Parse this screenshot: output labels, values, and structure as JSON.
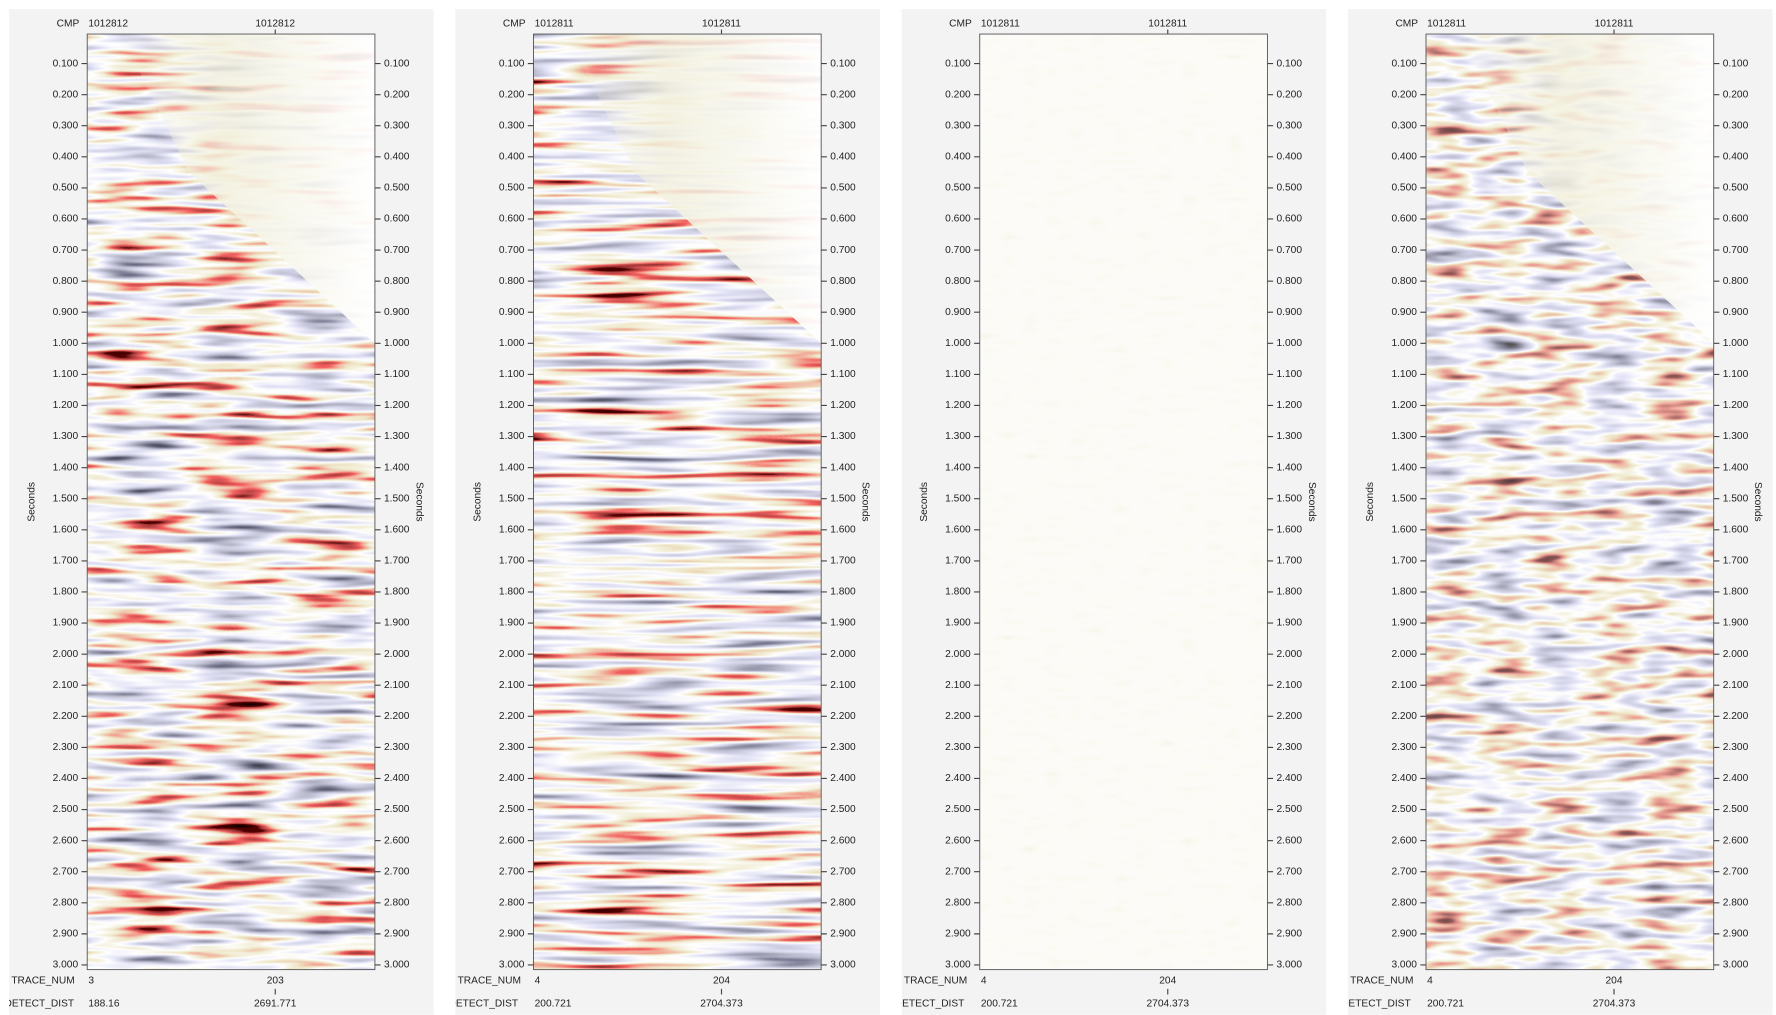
{
  "time_axis": {
    "label": "Seconds",
    "ylim": [
      0.005,
      3.015
    ],
    "yticks": [
      {
        "value": 0.1,
        "label": "0.100"
      },
      {
        "value": 0.2,
        "label": "0.200"
      },
      {
        "value": 0.3,
        "label": "0.300"
      },
      {
        "value": 0.4,
        "label": "0.400"
      },
      {
        "value": 0.5,
        "label": "0.500"
      },
      {
        "value": 0.6,
        "label": "0.600"
      },
      {
        "value": 0.7,
        "label": "0.700"
      },
      {
        "value": 0.8,
        "label": "0.800"
      },
      {
        "value": 0.9,
        "label": "0.900"
      },
      {
        "value": 1.0,
        "label": "1.000"
      },
      {
        "value": 1.1,
        "label": "1.100"
      },
      {
        "value": 1.2,
        "label": "1.200"
      },
      {
        "value": 1.3,
        "label": "1.300"
      },
      {
        "value": 1.4,
        "label": "1.400"
      },
      {
        "value": 1.5,
        "label": "1.500"
      },
      {
        "value": 1.6,
        "label": "1.600"
      },
      {
        "value": 1.7,
        "label": "1.700"
      },
      {
        "value": 1.8,
        "label": "1.800"
      },
      {
        "value": 1.9,
        "label": "1.900"
      },
      {
        "value": 2.0,
        "label": "2.000"
      },
      {
        "value": 2.1,
        "label": "2.100"
      },
      {
        "value": 2.2,
        "label": "2.200"
      },
      {
        "value": 2.3,
        "label": "2.300"
      },
      {
        "value": 2.4,
        "label": "2.400"
      },
      {
        "value": 2.5,
        "label": "2.500"
      },
      {
        "value": 2.6,
        "label": "2.600"
      },
      {
        "value": 2.7,
        "label": "2.700"
      },
      {
        "value": 2.8,
        "label": "2.800"
      },
      {
        "value": 2.9,
        "label": "2.900"
      },
      {
        "value": 3.0,
        "label": "3.000"
      }
    ]
  },
  "header_labels": {
    "cmp": "CMP",
    "trace_num": "TRACE_NUM",
    "detect_dist": "DETECT_DIST"
  },
  "panels": [
    {
      "cmp": [
        "1012812",
        "1012812"
      ],
      "trace_num": [
        "3",
        "203"
      ],
      "detect_dist": [
        "188.16",
        "2691.771"
      ]
    },
    {
      "cmp": [
        "1012811",
        "1012811"
      ],
      "trace_num": [
        "4",
        "204"
      ],
      "detect_dist": [
        "200.721",
        "2704.373"
      ]
    },
    {
      "cmp": [
        "1012811",
        "1012811"
      ],
      "trace_num": [
        "4",
        "204"
      ],
      "detect_dist": [
        "200.721",
        "2704.373"
      ]
    },
    {
      "cmp": [
        "1012811",
        "1012811"
      ],
      "trace_num": [
        "4",
        "204"
      ],
      "detect_dist": [
        "200.721",
        "2704.373"
      ]
    }
  ]
}
